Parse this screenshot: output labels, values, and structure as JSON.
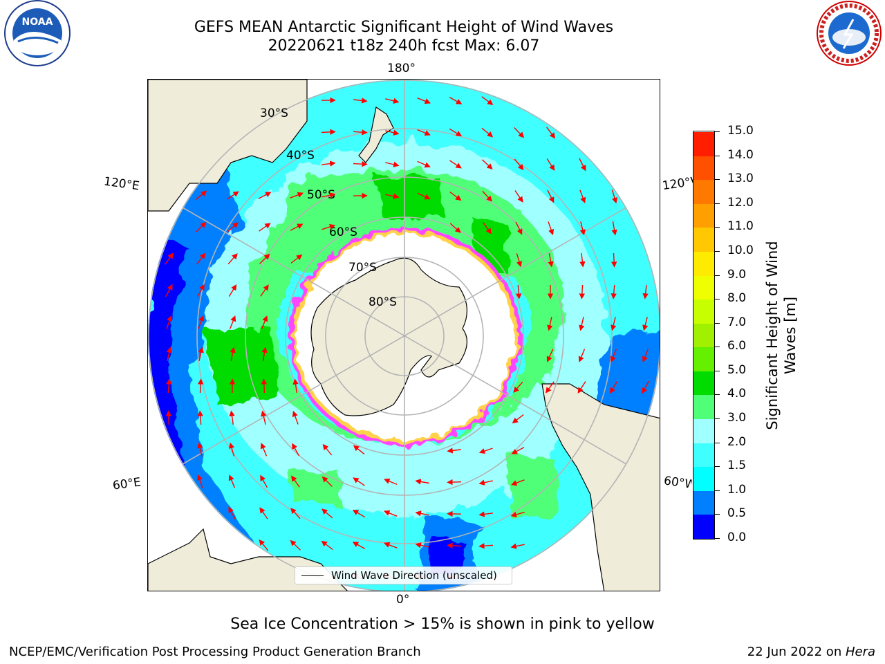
{
  "title_line1": "GEFS MEAN Antarctic Significant Height of Wind Waves",
  "title_line2": "20220621 t18z 240h fcst   Max: 6.07",
  "lon_labels": {
    "top": "180°",
    "bottom": "0°",
    "upper_left": "120°E",
    "upper_right": "120°W",
    "lower_left": "60°E",
    "lower_right": "60°W"
  },
  "lat_labels": [
    "30°S",
    "40°S",
    "50°S",
    "60°S",
    "70°S",
    "80°S"
  ],
  "legend_label": "Wind Wave Direction (unscaled)",
  "colorbar": {
    "label": "Significant Height of Wind Waves [m]",
    "ticks": [
      "15.0",
      "14.0",
      "13.0",
      "12.0",
      "11.0",
      "10.0",
      "9.0",
      "8.0",
      "7.0",
      "6.0",
      "5.0",
      "4.0",
      "3.0",
      "2.0",
      "1.5",
      "1.0",
      "0.5",
      "0.0"
    ],
    "colors_bottom_to_top": [
      "#0000ff",
      "#0080ff",
      "#00ffff",
      "#40ffff",
      "#a0ffff",
      "#50ff78",
      "#00dc00",
      "#64f000",
      "#a0f000",
      "#c8ff00",
      "#f0ff00",
      "#ffeb00",
      "#ffc800",
      "#ffa000",
      "#ff7800",
      "#ff5000",
      "#ff1e00"
    ]
  },
  "note": "Sea Ice Concentration > 15% is shown in pink to yellow",
  "footer_left": "NCEP/EMC/Verification Post Processing Product Generation Branch",
  "footer_right_prefix": "22 Jun 2022 on ",
  "footer_right_machine": "Hera",
  "logos": {
    "left": "NOAA",
    "right": "NATIONAL WEATHER SERVICE"
  },
  "colors": {
    "land": "#efedda",
    "grid": "#b4b4b4",
    "arrow": "#ff0000",
    "ice_edge": "#ff44ff"
  }
}
